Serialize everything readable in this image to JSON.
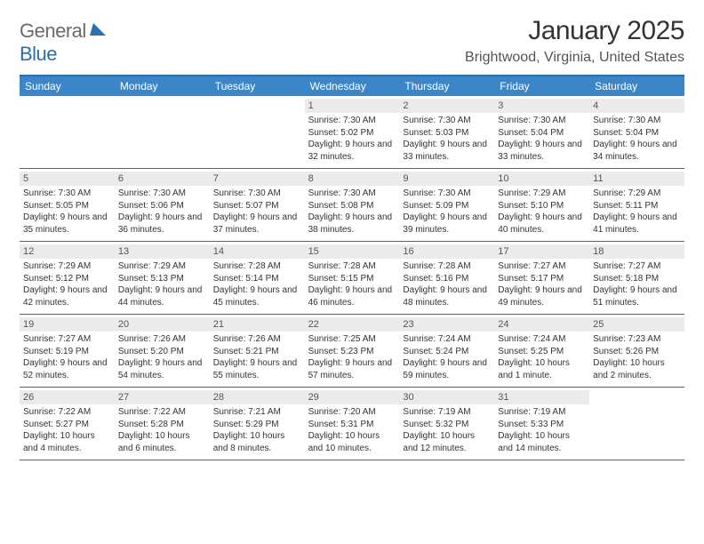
{
  "logo": {
    "word1": "General",
    "word2": "Blue"
  },
  "title": "January 2025",
  "location": "Brightwood, Virginia, United States",
  "header_bg": "#3b86c8",
  "rule_color": "#2b6fb3",
  "daynum_bg": "#ebebeb",
  "day_names": [
    "Sunday",
    "Monday",
    "Tuesday",
    "Wednesday",
    "Thursday",
    "Friday",
    "Saturday"
  ],
  "weeks": [
    [
      null,
      null,
      null,
      {
        "n": "1",
        "sr": "7:30 AM",
        "ss": "5:02 PM",
        "dl": "9 hours and 32 minutes."
      },
      {
        "n": "2",
        "sr": "7:30 AM",
        "ss": "5:03 PM",
        "dl": "9 hours and 33 minutes."
      },
      {
        "n": "3",
        "sr": "7:30 AM",
        "ss": "5:04 PM",
        "dl": "9 hours and 33 minutes."
      },
      {
        "n": "4",
        "sr": "7:30 AM",
        "ss": "5:04 PM",
        "dl": "9 hours and 34 minutes."
      }
    ],
    [
      {
        "n": "5",
        "sr": "7:30 AM",
        "ss": "5:05 PM",
        "dl": "9 hours and 35 minutes."
      },
      {
        "n": "6",
        "sr": "7:30 AM",
        "ss": "5:06 PM",
        "dl": "9 hours and 36 minutes."
      },
      {
        "n": "7",
        "sr": "7:30 AM",
        "ss": "5:07 PM",
        "dl": "9 hours and 37 minutes."
      },
      {
        "n": "8",
        "sr": "7:30 AM",
        "ss": "5:08 PM",
        "dl": "9 hours and 38 minutes."
      },
      {
        "n": "9",
        "sr": "7:30 AM",
        "ss": "5:09 PM",
        "dl": "9 hours and 39 minutes."
      },
      {
        "n": "10",
        "sr": "7:29 AM",
        "ss": "5:10 PM",
        "dl": "9 hours and 40 minutes."
      },
      {
        "n": "11",
        "sr": "7:29 AM",
        "ss": "5:11 PM",
        "dl": "9 hours and 41 minutes."
      }
    ],
    [
      {
        "n": "12",
        "sr": "7:29 AM",
        "ss": "5:12 PM",
        "dl": "9 hours and 42 minutes."
      },
      {
        "n": "13",
        "sr": "7:29 AM",
        "ss": "5:13 PM",
        "dl": "9 hours and 44 minutes."
      },
      {
        "n": "14",
        "sr": "7:28 AM",
        "ss": "5:14 PM",
        "dl": "9 hours and 45 minutes."
      },
      {
        "n": "15",
        "sr": "7:28 AM",
        "ss": "5:15 PM",
        "dl": "9 hours and 46 minutes."
      },
      {
        "n": "16",
        "sr": "7:28 AM",
        "ss": "5:16 PM",
        "dl": "9 hours and 48 minutes."
      },
      {
        "n": "17",
        "sr": "7:27 AM",
        "ss": "5:17 PM",
        "dl": "9 hours and 49 minutes."
      },
      {
        "n": "18",
        "sr": "7:27 AM",
        "ss": "5:18 PM",
        "dl": "9 hours and 51 minutes."
      }
    ],
    [
      {
        "n": "19",
        "sr": "7:27 AM",
        "ss": "5:19 PM",
        "dl": "9 hours and 52 minutes."
      },
      {
        "n": "20",
        "sr": "7:26 AM",
        "ss": "5:20 PM",
        "dl": "9 hours and 54 minutes."
      },
      {
        "n": "21",
        "sr": "7:26 AM",
        "ss": "5:21 PM",
        "dl": "9 hours and 55 minutes."
      },
      {
        "n": "22",
        "sr": "7:25 AM",
        "ss": "5:23 PM",
        "dl": "9 hours and 57 minutes."
      },
      {
        "n": "23",
        "sr": "7:24 AM",
        "ss": "5:24 PM",
        "dl": "9 hours and 59 minutes."
      },
      {
        "n": "24",
        "sr": "7:24 AM",
        "ss": "5:25 PM",
        "dl": "10 hours and 1 minute."
      },
      {
        "n": "25",
        "sr": "7:23 AM",
        "ss": "5:26 PM",
        "dl": "10 hours and 2 minutes."
      }
    ],
    [
      {
        "n": "26",
        "sr": "7:22 AM",
        "ss": "5:27 PM",
        "dl": "10 hours and 4 minutes."
      },
      {
        "n": "27",
        "sr": "7:22 AM",
        "ss": "5:28 PM",
        "dl": "10 hours and 6 minutes."
      },
      {
        "n": "28",
        "sr": "7:21 AM",
        "ss": "5:29 PM",
        "dl": "10 hours and 8 minutes."
      },
      {
        "n": "29",
        "sr": "7:20 AM",
        "ss": "5:31 PM",
        "dl": "10 hours and 10 minutes."
      },
      {
        "n": "30",
        "sr": "7:19 AM",
        "ss": "5:32 PM",
        "dl": "10 hours and 12 minutes."
      },
      {
        "n": "31",
        "sr": "7:19 AM",
        "ss": "5:33 PM",
        "dl": "10 hours and 14 minutes."
      },
      null
    ]
  ],
  "labels": {
    "sunrise": "Sunrise:",
    "sunset": "Sunset:",
    "daylight": "Daylight:"
  }
}
